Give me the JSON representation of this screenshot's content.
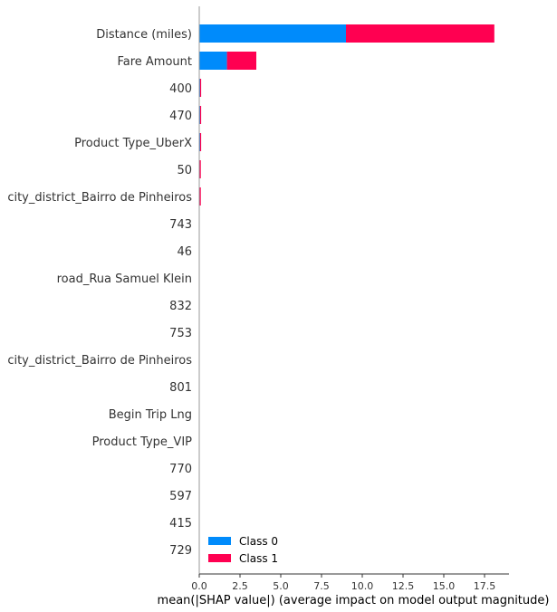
{
  "chart_data": {
    "type": "bar",
    "stacked": true,
    "orientation": "horizontal",
    "categories": [
      "Distance (miles)",
      "Fare Amount",
      "400",
      "470",
      "Product Type_UberX",
      "50",
      "city_district_Bairro de Pinheiros",
      "743",
      "46",
      "road_Rua Samuel Klein",
      "832",
      "753",
      "city_district_Bairro de Pinheiros",
      "801",
      "Begin Trip Lng",
      "Product Type_VIP",
      "770",
      "597",
      "415",
      "729"
    ],
    "series": [
      {
        "name": "Class 0",
        "color": "#008bfb",
        "values": [
          9.0,
          1.7,
          0.05,
          0.05,
          0.05,
          0.03,
          0.03,
          0.0,
          0.0,
          0.0,
          0.0,
          0.0,
          0.0,
          0.0,
          0.0,
          0.0,
          0.0,
          0.0,
          0.0,
          0.0
        ]
      },
      {
        "name": "Class 1",
        "color": "#ff0051",
        "values": [
          9.1,
          1.8,
          0.05,
          0.05,
          0.05,
          0.03,
          0.03,
          0.0,
          0.0,
          0.0,
          0.0,
          0.0,
          0.0,
          0.0,
          0.0,
          0.0,
          0.0,
          0.0,
          0.0,
          0.0
        ]
      }
    ],
    "xlim": [
      0,
      19
    ],
    "xticks": [
      "0.0",
      "2.5",
      "5.0",
      "7.5",
      "10.0",
      "12.5",
      "15.0",
      "17.5"
    ],
    "xtick_values": [
      0,
      2.5,
      5,
      7.5,
      10,
      12.5,
      15,
      17.5
    ],
    "xlabel": "mean(|SHAP value|) (average impact on model output magnitude)",
    "ylabel": "",
    "title": "",
    "legend_position": "lower-left",
    "grid": false
  }
}
